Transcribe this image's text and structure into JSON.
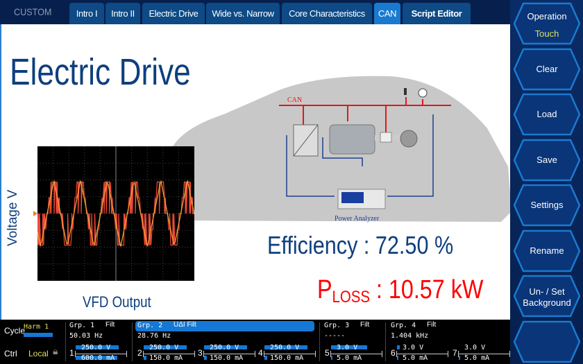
{
  "topbar": {
    "custom_label": "CUSTOM",
    "tabs": [
      {
        "label": "Intro I"
      },
      {
        "label": "Intro II"
      },
      {
        "label": "Electric Drive"
      },
      {
        "label": "Wide vs. Narrow"
      },
      {
        "label": "Core Characteristics"
      },
      {
        "label": "CAN",
        "active": true
      },
      {
        "label": "Script Editor"
      }
    ]
  },
  "main": {
    "title": "Electric Drive",
    "voltage_label": "Voltage V",
    "scope_caption": "VFD Output",
    "diagram": {
      "can_label": "CAN",
      "analyzer_label": "Power Analyzer"
    },
    "efficiency": "Efficiency : 72.50 %",
    "ploss_p": "P",
    "ploss_sub": "LOSS",
    "ploss_value": " : 10.57 kW"
  },
  "sidebar": {
    "buttons": [
      {
        "label": "Operation",
        "sub": "Touch"
      },
      {
        "label": "Clear"
      },
      {
        "label": "Load"
      },
      {
        "label": "Save"
      },
      {
        "label": "Settings"
      },
      {
        "label": "Rename"
      },
      {
        "label": "Un- / Set",
        "sub2": "Background"
      },
      {
        "label": ""
      }
    ]
  },
  "status": {
    "cycle_label": "Cycle",
    "cycle_value": "Harm 1",
    "ctrl_label": "Ctrl",
    "ctrl_value": "Local",
    "groups": [
      {
        "name": "Grp. 1",
        "flag": "Filt",
        "freq": "50.03  Hz"
      },
      {
        "name": "Grp. 2",
        "flag": "UΔI  Filt",
        "freq": "28.76  Hz"
      },
      {
        "name": "Grp. 3",
        "flag": "Filt",
        "freq": "-----"
      },
      {
        "name": "Grp. 4",
        "flag": "Filt",
        "freq": "1.404 kHz"
      }
    ],
    "channels": [
      {
        "num": "1",
        "v": "250.0 V",
        "i": "600.0 mA"
      },
      {
        "num": "2",
        "v": "250.0 V",
        "i": "150.0 mA"
      },
      {
        "num": "3",
        "v": "250.0 V",
        "i": "150.0 mA"
      },
      {
        "num": "4",
        "v": "250.0 V",
        "i": "150.0 mA"
      },
      {
        "num": "5",
        "v": "3.0 V",
        "i": "5.0 mA"
      },
      {
        "num": "6",
        "v": "3.0 V",
        "i": "5.0 mA"
      },
      {
        "num": "7",
        "v": "3.0 V",
        "i": "5.0 mA"
      }
    ]
  },
  "colors": {
    "accent": "#1a7ad0",
    "navy": "#0e3f7e",
    "loss": "#ff0000",
    "yellow": "#e0e060"
  }
}
